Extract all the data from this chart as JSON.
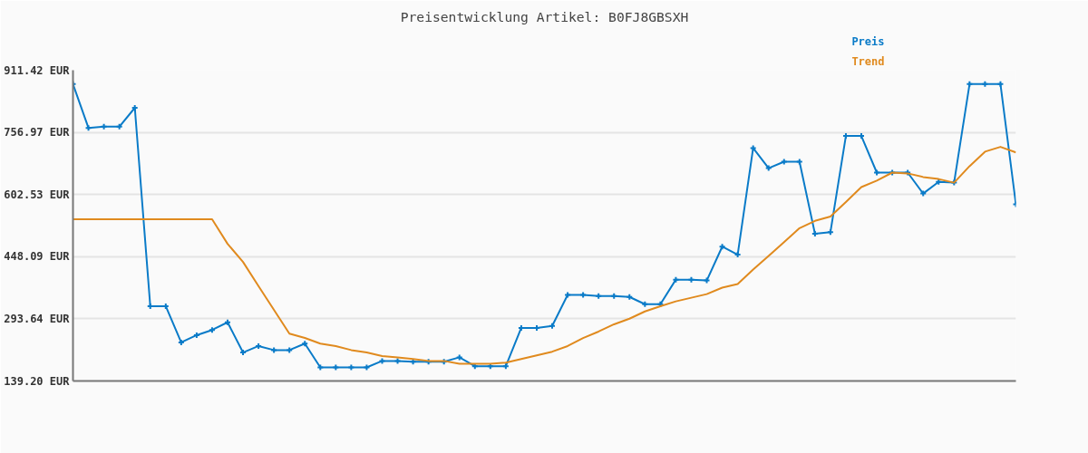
{
  "chart_data": {
    "type": "line",
    "title": "Preisentwicklung Artikel: B0FJ8GBSXH",
    "categories": [
      null,
      null,
      null,
      null,
      null,
      null,
      null,
      null,
      null,
      null,
      null,
      null,
      null,
      null,
      null,
      null,
      null,
      null,
      null,
      null,
      null,
      null,
      null,
      null,
      null,
      null,
      null,
      null,
      null,
      null,
      null,
      null,
      null,
      null,
      null,
      null,
      null,
      null,
      null,
      null,
      null,
      null,
      null,
      null,
      null,
      null,
      null,
      null,
      null,
      null,
      null,
      null,
      null,
      null,
      null,
      null,
      null,
      null,
      null,
      null,
      null,
      null
    ],
    "series": [
      {
        "name": "Preis",
        "color": "#0a7bc8",
        "marker": "cross",
        "values": [
          877,
          768,
          771,
          771,
          818,
          325,
          325,
          235,
          253,
          266,
          285,
          210,
          226,
          216,
          216,
          232,
          173,
          173,
          173,
          173,
          189,
          189,
          187,
          187,
          187,
          198,
          176,
          176,
          176,
          271,
          271,
          276,
          353,
          353,
          350,
          350,
          348,
          330,
          330,
          391,
          391,
          389,
          473,
          453,
          718,
          668,
          684,
          684,
          505,
          509,
          748,
          748,
          657,
          657,
          657,
          605,
          634,
          632,
          877,
          877,
          877,
          578
        ]
      },
      {
        "name": "Trend",
        "color": "#e08a1e",
        "marker": "none",
        "values": [
          541,
          541,
          541,
          541,
          541,
          541,
          541,
          541,
          541,
          541,
          480,
          435,
          375,
          316,
          257,
          246,
          232,
          226,
          216,
          210,
          201,
          198,
          194,
          189,
          189,
          182,
          182,
          182,
          185,
          194,
          203,
          212,
          226,
          246,
          262,
          280,
          294,
          312,
          325,
          337,
          346,
          355,
          371,
          380,
          416,
          450,
          484,
          519,
          537,
          548,
          584,
          621,
          637,
          657,
          655,
          646,
          641,
          632,
          673,
          709,
          721,
          707
        ]
      }
    ],
    "ylim": [
      139.2,
      911.42
    ],
    "yticks": [
      {
        "value": 139.2,
        "label": "139.20 EUR"
      },
      {
        "value": 293.64,
        "label": "293.64 EUR"
      },
      {
        "value": 448.09,
        "label": "448.09 EUR"
      },
      {
        "value": 602.53,
        "label": "602.53 EUR"
      },
      {
        "value": 756.97,
        "label": "756.97 EUR"
      },
      {
        "value": 911.42,
        "label": "911.42 EUR"
      }
    ],
    "grid": "y",
    "tick_labels": "y",
    "line_style": "solid"
  }
}
